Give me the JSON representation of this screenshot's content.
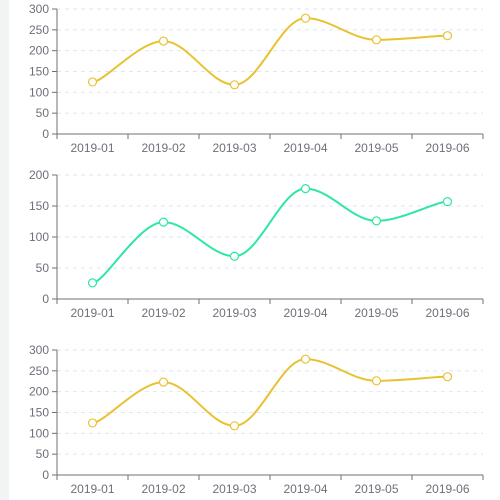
{
  "chart_data": [
    {
      "type": "line",
      "categories": [
        "2019-01",
        "2019-02",
        "2019-03",
        "2019-04",
        "2019-05",
        "2019-06"
      ],
      "series": [
        {
          "values": [
            125,
            223,
            118,
            278,
            226,
            236
          ],
          "color": "#e8c232"
        }
      ],
      "yticks": [
        0,
        50,
        100,
        150,
        200,
        250,
        300
      ],
      "ylim": [
        0,
        300
      ],
      "smooth": true,
      "grid": "horizontal dashed"
    },
    {
      "type": "line",
      "categories": [
        "2019-01",
        "2019-02",
        "2019-03",
        "2019-04",
        "2019-05",
        "2019-06"
      ],
      "series": [
        {
          "values": [
            26,
            124,
            69,
            178,
            126,
            157
          ],
          "color": "#2ee8a1"
        }
      ],
      "yticks": [
        0,
        50,
        100,
        150,
        200
      ],
      "ylim": [
        0,
        200
      ],
      "smooth": true,
      "grid": "horizontal dashed"
    },
    {
      "type": "line",
      "categories": [
        "2019-01",
        "2019-02",
        "2019-03",
        "2019-04",
        "2019-05",
        "2019-06"
      ],
      "series": [
        {
          "values": [
            125,
            223,
            118,
            278,
            226,
            236
          ],
          "color": "#e8c232"
        }
      ],
      "yticks": [
        0,
        50,
        100,
        150,
        200,
        250,
        300
      ],
      "ylim": [
        0,
        300
      ],
      "smooth": true,
      "grid": "horizontal dashed"
    }
  ]
}
